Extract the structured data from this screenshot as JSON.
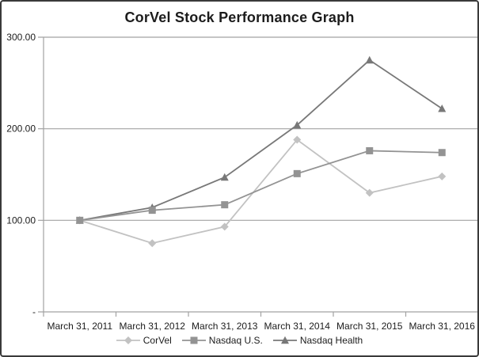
{
  "chart_data": {
    "type": "line",
    "title": "CorVel Stock Performance Graph",
    "categories": [
      "March 31, 2011",
      "March 31, 2012",
      "March 31, 2013",
      "March 31, 2014",
      "March 31, 2015",
      "March 31, 2016"
    ],
    "series": [
      {
        "name": "CorVel",
        "marker": "diamond",
        "color": "#c2c2c2",
        "values": [
          100,
          75,
          93,
          188,
          130,
          148
        ]
      },
      {
        "name": "Nasdaq U.S.",
        "marker": "square",
        "color": "#939393",
        "values": [
          100,
          111,
          117,
          151,
          176,
          174
        ]
      },
      {
        "name": "Nasdaq Health",
        "marker": "triangle",
        "color": "#787878",
        "values": [
          100,
          114,
          147,
          204,
          275,
          222
        ]
      }
    ],
    "xlabel": "",
    "ylabel": "",
    "ylim": [
      0,
      300
    ],
    "yticks": [
      {
        "value": 0,
        "label": "-"
      },
      {
        "value": 100,
        "label": "100.00"
      },
      {
        "value": 200,
        "label": "200.00"
      },
      {
        "value": 300,
        "label": "300.00"
      }
    ],
    "grid": "horizontal",
    "legend_position": "bottom"
  },
  "colors": {
    "background": "#ffffff",
    "frame_border": "#3a3a3a",
    "axis": "#a2a2a2",
    "text": "#1c1c1c"
  }
}
